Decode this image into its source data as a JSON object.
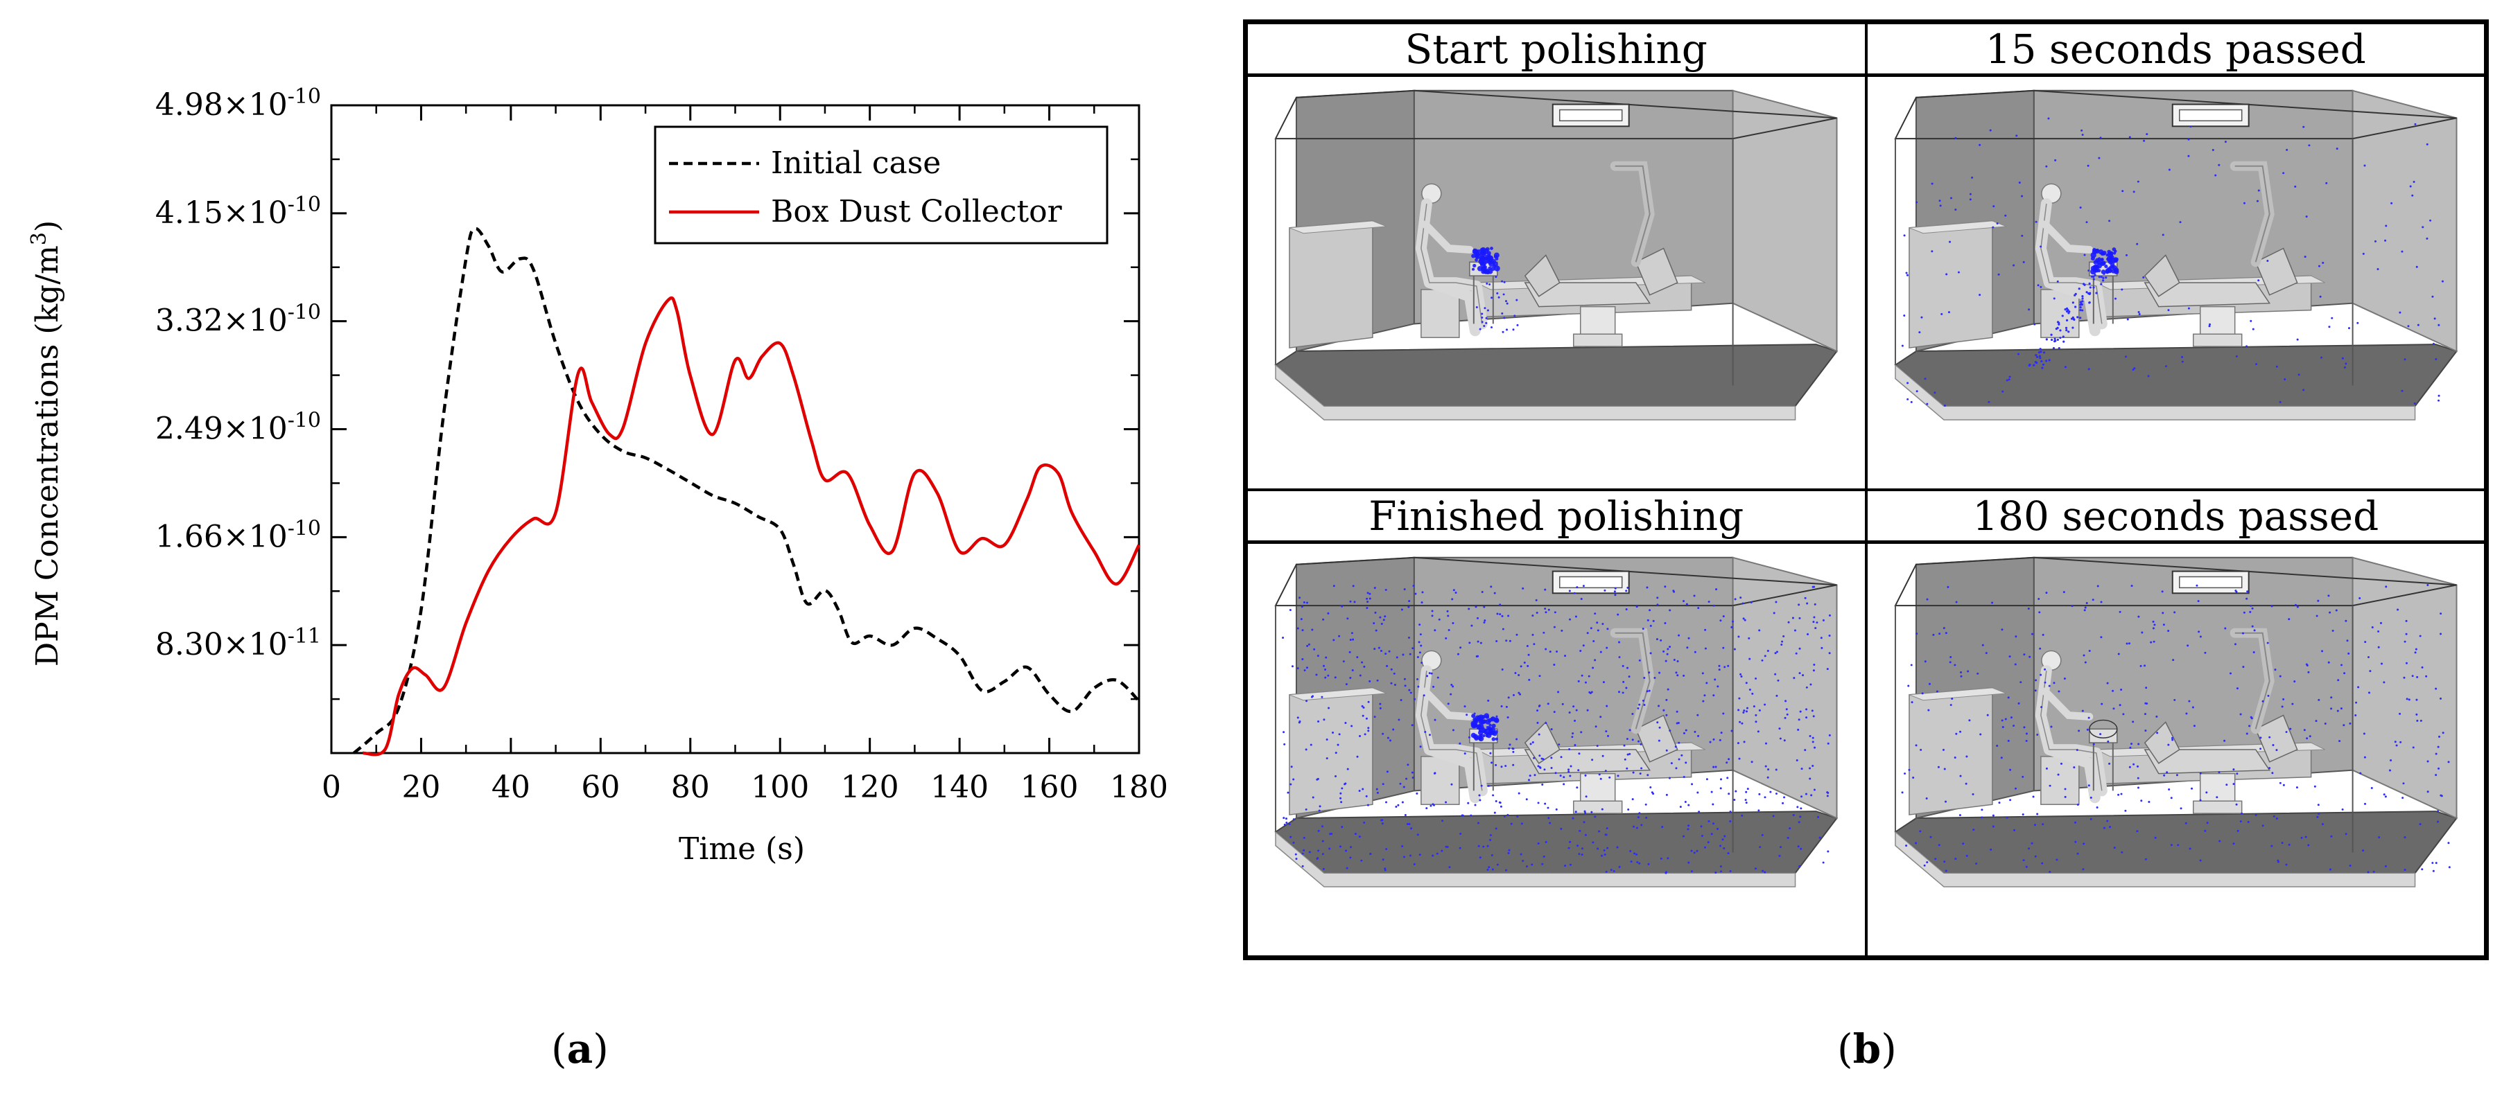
{
  "figure": {
    "panel_a_label": "a",
    "panel_b_label": "b"
  },
  "chart_data": {
    "type": "line",
    "xlabel": "Time (s)",
    "ylabel": "DPM Concentrations (kg/m",
    "ylabel_sup": "3",
    "ylabel_end": ")",
    "xlim": [
      0,
      180
    ],
    "ylim": [
      0,
      4.98e-10
    ],
    "x_ticks": [
      0,
      20,
      40,
      60,
      80,
      100,
      120,
      140,
      160,
      180
    ],
    "x_tick_labels": [
      "0",
      "20",
      "40",
      "60",
      "80",
      "100",
      "120",
      "140",
      "160",
      "180"
    ],
    "y_ticks": [
      8.3e-11,
      1.66e-10,
      2.49e-10,
      3.32e-10,
      4.15e-10,
      4.98e-10
    ],
    "y_tick_labels": [
      {
        "mantissa": "8.30",
        "exp": "-11"
      },
      {
        "mantissa": "1.66",
        "exp": "-10"
      },
      {
        "mantissa": "2.49",
        "exp": "-10"
      },
      {
        "mantissa": "3.32",
        "exp": "-10"
      },
      {
        "mantissa": "4.15",
        "exp": "-10"
      },
      {
        "mantissa": "4.98",
        "exp": "-10"
      }
    ],
    "legend_position": "top-right",
    "series": [
      {
        "name": "Initial case",
        "color": "#000000",
        "style": "dashed",
        "x": [
          5,
          10,
          15,
          20,
          25,
          30,
          32,
          35,
          38,
          42,
          45,
          50,
          55,
          60,
          65,
          70,
          75,
          80,
          85,
          90,
          95,
          100,
          103,
          106,
          110,
          113,
          116,
          120,
          125,
          130,
          135,
          140,
          145,
          150,
          155,
          160,
          165,
          170,
          175,
          180
        ],
        "y": [
          0,
          1.5e-11,
          3.5e-11,
          1.1e-10,
          2.6e-10,
          3.8e-10,
          4.03e-10,
          3.9e-10,
          3.7e-10,
          3.8e-10,
          3.72e-10,
          3.15e-10,
          2.7e-10,
          2.45e-10,
          2.32e-10,
          2.27e-10,
          2.18e-10,
          2.08e-10,
          1.98e-10,
          1.92e-10,
          1.82e-10,
          1.72e-10,
          1.45e-10,
          1.15e-10,
          1.25e-10,
          1.1e-10,
          8.5e-11,
          9e-11,
          8.3e-11,
          9.6e-11,
          8.8e-11,
          7.5e-11,
          4.8e-11,
          5.5e-11,
          6.6e-11,
          4.5e-11,
          3.2e-11,
          5e-11,
          5.6e-11,
          4e-11
        ]
      },
      {
        "name": "Box Dust Collector",
        "color": "#e00000",
        "style": "solid",
        "x": [
          7,
          12,
          15,
          18,
          21,
          25,
          30,
          35,
          40,
          45,
          50,
          55,
          58,
          62,
          65,
          70,
          75,
          77,
          80,
          85,
          90,
          93,
          96,
          100,
          103,
          107,
          110,
          115,
          120,
          125,
          130,
          135,
          140,
          145,
          150,
          155,
          158,
          162,
          165,
          170,
          175,
          180
        ],
        "y": [
          0,
          3e-12,
          4.5e-11,
          6.5e-11,
          6e-11,
          5e-11,
          1e-10,
          1.4e-10,
          1.65e-10,
          1.8e-10,
          1.85e-10,
          2.92e-10,
          2.7e-10,
          2.45e-10,
          2.5e-10,
          3.15e-10,
          3.48e-10,
          3.4e-10,
          2.9e-10,
          2.45e-10,
          3.02e-10,
          2.88e-10,
          3.05e-10,
          3.15e-10,
          2.9e-10,
          2.4e-10,
          2.1e-10,
          2.15e-10,
          1.75e-10,
          1.55e-10,
          2.15e-10,
          2e-10,
          1.55e-10,
          1.65e-10,
          1.6e-10,
          1.95e-10,
          2.2e-10,
          2.15e-10,
          1.85e-10,
          1.55e-10,
          1.3e-10,
          1.6e-10
        ]
      }
    ]
  },
  "panel_b": {
    "cells": [
      {
        "title": "Start polishing",
        "particles": 30
      },
      {
        "title": "15 seconds passed",
        "particles": 180
      },
      {
        "title": "Finished polishing",
        "particles": 900
      },
      {
        "title": "180 seconds passed",
        "particles": 450
      }
    ],
    "colors": {
      "particle": "#2b2bff",
      "dust_cloud": "#1a1aff",
      "box": "#c8c8c8",
      "floor": "#6a6a6a"
    }
  }
}
